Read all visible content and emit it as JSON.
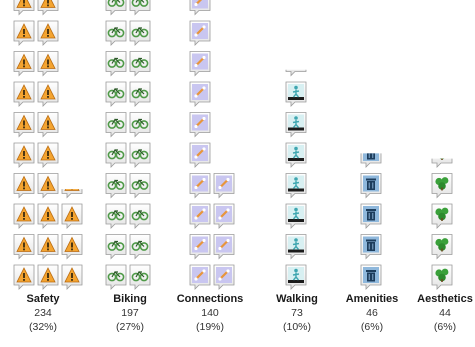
{
  "chart_data": {
    "type": "bar",
    "title": "",
    "xlabel": "",
    "ylabel": "",
    "categories": [
      "Safety",
      "Biking",
      "Connections",
      "Walking",
      "Amenities",
      "Aesthetics"
    ],
    "counts": [
      "234",
      "197",
      "140",
      "73",
      "46",
      "44"
    ],
    "percents": [
      "(32%)",
      "(27%)",
      "(19%)",
      "(10%)",
      "(6%)",
      "(6%)"
    ],
    "values": [
      234,
      197,
      140,
      73,
      46,
      44
    ],
    "icons": [
      "warning-icon",
      "bicycle-icon",
      "connection-icon",
      "pedestrian-icon",
      "trash-can-icon",
      "shrub-icon"
    ],
    "icon_colors": [
      "#f4a430",
      "#4f9a48",
      "#8a84d0",
      "#3fa6b0",
      "#2f6aa0",
      "#3aa03a"
    ],
    "grid": false,
    "legend": "none"
  }
}
